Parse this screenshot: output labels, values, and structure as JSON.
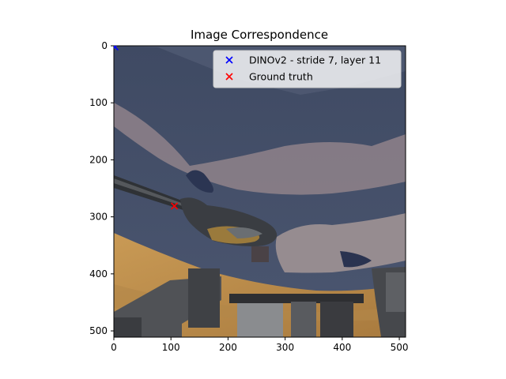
{
  "chart_data": {
    "type": "scatter",
    "title": "Image Correspondence",
    "xlabel": "",
    "ylabel": "",
    "xlim": [
      0,
      511
    ],
    "ylim": [
      511,
      0
    ],
    "y_inverted": true,
    "xticks": [
      0,
      100,
      200,
      300,
      400,
      500
    ],
    "yticks": [
      0,
      100,
      200,
      300,
      400,
      500
    ],
    "grid": false,
    "legend_position": "top-right",
    "background": "photo of a wrench lying on a blue cloth above a wooden surface, with grey machine parts at the bottom",
    "series": [
      {
        "name": "DINOv2 - stride 7, layer 11",
        "marker": "x",
        "color": "#0000ff",
        "points": [
          [
            2,
            2
          ]
        ]
      },
      {
        "name": "Ground truth",
        "marker": "x",
        "color": "#ff0000",
        "points": [
          [
            106,
            281
          ]
        ]
      }
    ]
  }
}
